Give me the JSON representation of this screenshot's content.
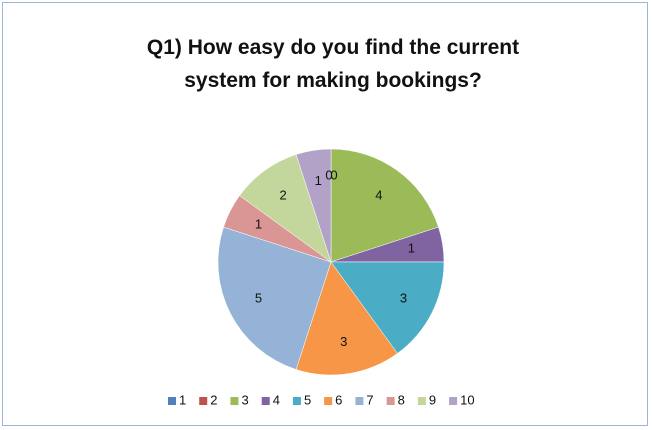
{
  "chart_data": {
    "type": "pie",
    "title": "Q1) How easy do you find the current system for making bookings?",
    "categories": [
      "1",
      "2",
      "3",
      "4",
      "5",
      "6",
      "7",
      "8",
      "9",
      "10"
    ],
    "values": [
      0,
      0,
      4,
      1,
      3,
      3,
      5,
      1,
      2,
      1
    ],
    "colors": [
      "#4f81bd",
      "#c0504d",
      "#9bbb59",
      "#8064a2",
      "#4bacc6",
      "#f79646",
      "#95b3d7",
      "#d99694",
      "#c3d69b",
      "#b2a2c7"
    ],
    "legend": "bottom"
  }
}
